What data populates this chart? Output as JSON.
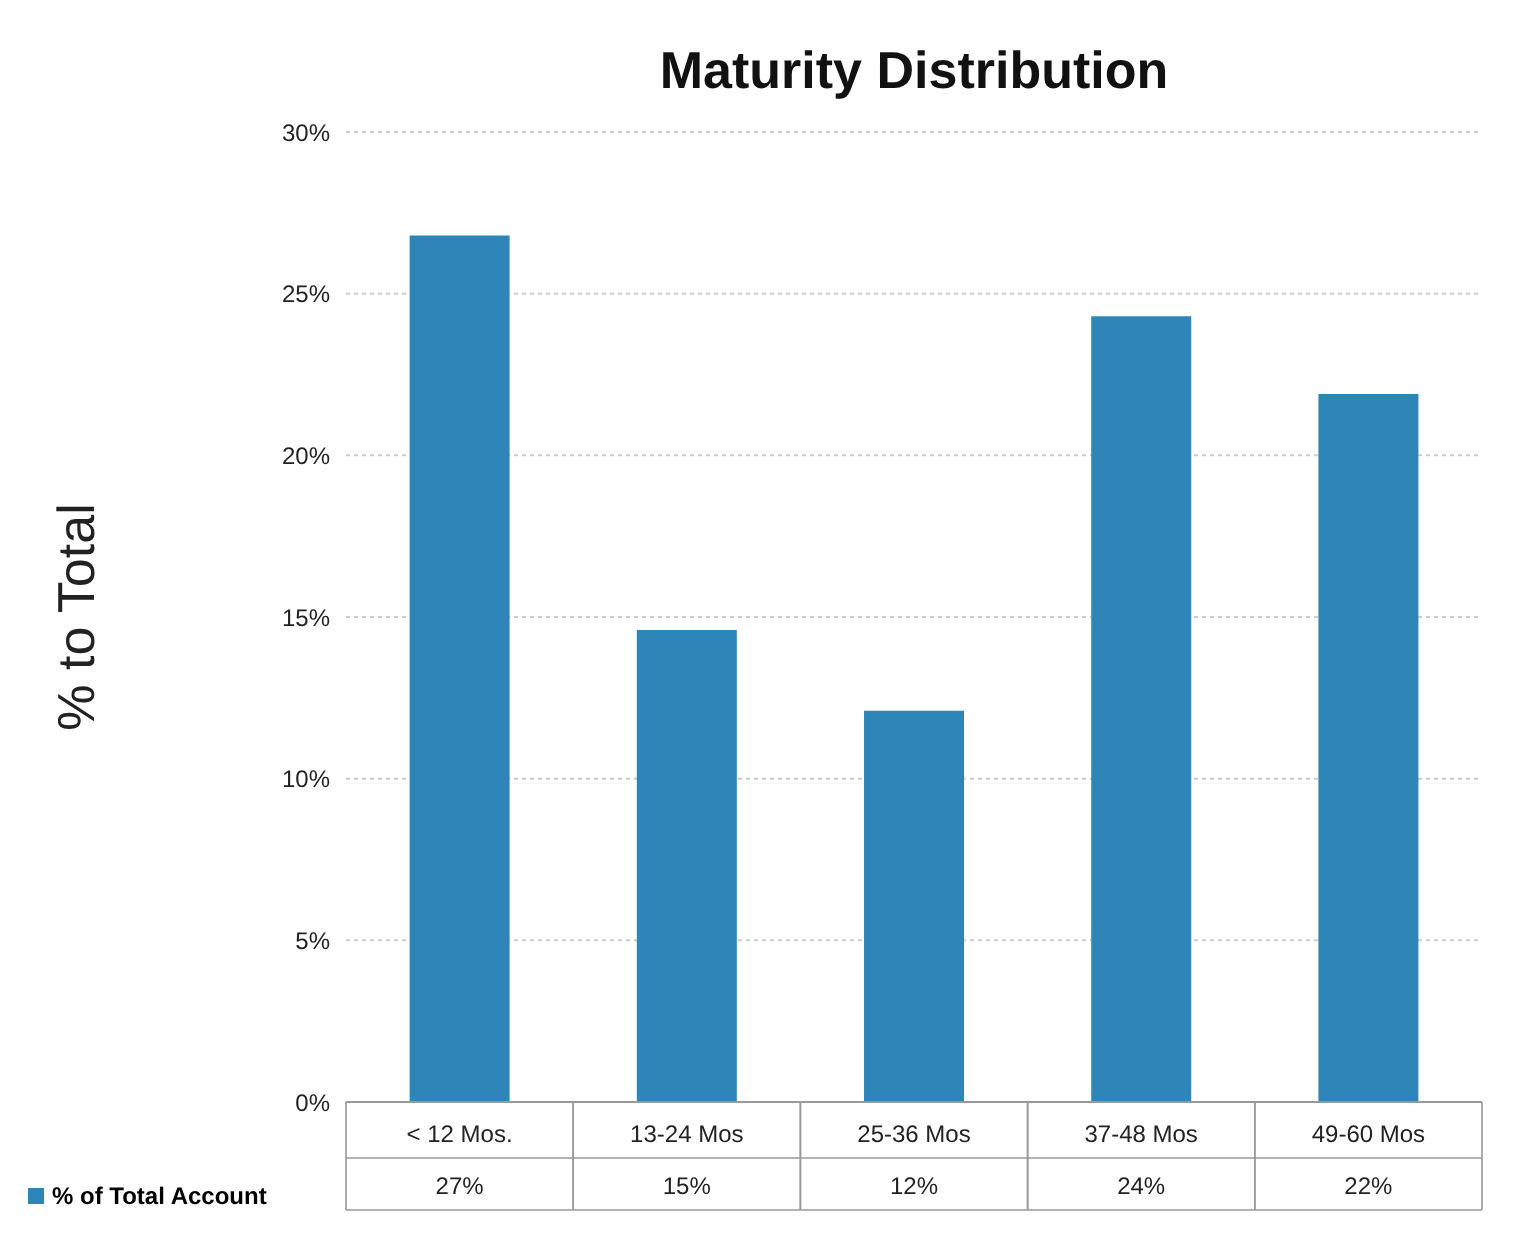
{
  "chart_data": {
    "type": "bar",
    "title": "Maturity Distribution",
    "ylabel": "% to Total",
    "categories": [
      "< 12 Mos.",
      "13-24 Mos",
      "25-36 Mos",
      "37-48 Mos",
      "49-60 Mos"
    ],
    "series": [
      {
        "name": "% of Total Account",
        "color": "#2e86b8",
        "values": [
          26.8,
          14.6,
          12.1,
          24.3,
          21.9
        ],
        "value_labels": [
          "27%",
          "15%",
          "12%",
          "24%",
          "22%"
        ]
      }
    ],
    "ylim": [
      0,
      30
    ],
    "yticks": [
      {
        "value": 0,
        "label": "0%"
      },
      {
        "value": 5,
        "label": "5%"
      },
      {
        "value": 10,
        "label": "10%"
      },
      {
        "value": 15,
        "label": "15%"
      },
      {
        "value": 20,
        "label": "20%"
      },
      {
        "value": 25,
        "label": "25%"
      },
      {
        "value": 30,
        "label": "30%"
      }
    ],
    "grid": "y",
    "legend": "bottom left"
  }
}
